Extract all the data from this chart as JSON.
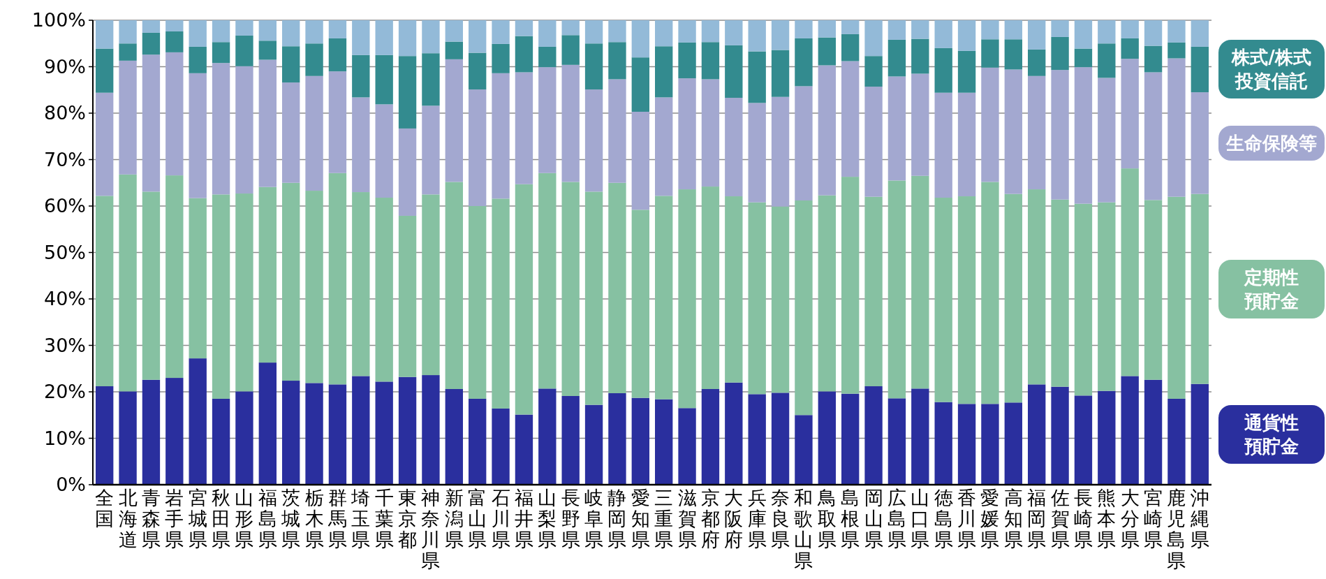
{
  "chart_data": {
    "type": "bar",
    "stacked": true,
    "grid": "y",
    "legend": "right",
    "categories": [
      "全国",
      "北海道",
      "青森県",
      "岩手県",
      "宮城県",
      "秋田県",
      "山形県",
      "福島県",
      "茨城県",
      "栃木県",
      "群馬県",
      "埼玉県",
      "千葉県",
      "東京都",
      "神奈川県",
      "新潟県",
      "富山県",
      "石川県",
      "福井県",
      "山梨県",
      "長野県",
      "岐阜県",
      "静岡県",
      "愛知県",
      "三重県",
      "滋賀県",
      "京都府",
      "大阪府",
      "兵庫県",
      "奈良県",
      "和歌山県",
      "鳥取県",
      "島根県",
      "岡山県",
      "広島県",
      "山口県",
      "徳島県",
      "香川県",
      "愛媛県",
      "高知県",
      "福岡県",
      "佐賀県",
      "長崎県",
      "熊本県",
      "大分県",
      "宮崎県",
      "鹿児島県",
      "沖縄県"
    ],
    "ylim": [
      0,
      100
    ],
    "yticks": [
      {
        "value": 0,
        "label": "0%"
      },
      {
        "value": 10,
        "label": "10%"
      },
      {
        "value": 20,
        "label": "20%"
      },
      {
        "value": 30,
        "label": "30%"
      },
      {
        "value": 40,
        "label": "40%"
      },
      {
        "value": 50,
        "label": "50%"
      },
      {
        "value": 60,
        "label": "60%"
      },
      {
        "value": 70,
        "label": "70%"
      },
      {
        "value": 80,
        "label": "80%"
      },
      {
        "value": 90,
        "label": "90%"
      },
      {
        "value": 100,
        "label": "100%"
      }
    ],
    "series": [
      {
        "name": "通貨性預貯金",
        "color": "#2a2f9e",
        "values": [
          21.2,
          20.1,
          22.6,
          23.0,
          27.2,
          18.5,
          20.1,
          26.3,
          22.4,
          21.9,
          21.6,
          23.4,
          22.2,
          23.2,
          23.6,
          20.6,
          18.5,
          16.4,
          15.1,
          20.7,
          19.1,
          17.2,
          19.7,
          18.7,
          18.4,
          16.5,
          20.6,
          22.0,
          19.5,
          19.8,
          15.0,
          20.1,
          19.6,
          21.2,
          18.6,
          20.7,
          17.8,
          17.4,
          17.4,
          17.7,
          21.6,
          21.1,
          19.2,
          20.2,
          23.4,
          22.6,
          18.5,
          21.7
        ]
      },
      {
        "name": "定期性預貯金",
        "color": "#86c1a2",
        "values": [
          41.0,
          46.7,
          40.5,
          43.6,
          34.5,
          44.0,
          42.6,
          37.8,
          42.6,
          41.4,
          45.5,
          39.6,
          39.6,
          34.7,
          38.9,
          44.6,
          41.5,
          45.2,
          49.6,
          46.4,
          46.1,
          45.9,
          45.3,
          40.5,
          43.8,
          47.1,
          43.6,
          40.1,
          41.3,
          40.1,
          46.2,
          42.2,
          46.7,
          40.8,
          46.9,
          45.8,
          44.0,
          44.7,
          47.8,
          44.9,
          42.0,
          40.3,
          41.3,
          40.6,
          44.7,
          38.7,
          43.5,
          40.9
        ]
      },
      {
        "name": "生命保険等",
        "color": "#a3a8d0",
        "values": [
          22.2,
          24.5,
          29.5,
          26.5,
          26.9,
          28.3,
          27.4,
          27.4,
          21.6,
          24.7,
          21.9,
          20.4,
          20.1,
          18.8,
          19.1,
          26.4,
          25.1,
          27.0,
          24.1,
          22.8,
          25.2,
          22.0,
          22.3,
          21.1,
          21.2,
          23.9,
          23.1,
          21.2,
          21.4,
          23.6,
          24.6,
          28.0,
          24.9,
          23.7,
          22.4,
          22.0,
          22.6,
          22.3,
          24.6,
          26.8,
          24.4,
          27.9,
          29.4,
          26.8,
          23.6,
          27.5,
          29.8,
          21.9
        ]
      },
      {
        "name": "株式/株式投資信託",
        "color": "#338b8f",
        "values": [
          9.5,
          3.7,
          4.7,
          4.5,
          5.7,
          4.5,
          6.6,
          4.1,
          7.8,
          7.0,
          7.1,
          9.1,
          10.6,
          15.6,
          11.3,
          3.8,
          7.9,
          6.3,
          7.8,
          4.4,
          6.4,
          9.9,
          8.0,
          11.7,
          11.0,
          7.7,
          8.0,
          11.3,
          11.1,
          10.1,
          10.3,
          6.0,
          5.8,
          6.6,
          7.9,
          7.5,
          9.6,
          9.0,
          6.1,
          6.5,
          5.7,
          7.1,
          4.0,
          7.4,
          4.4,
          5.7,
          3.4,
          9.8
        ]
      },
      {
        "color": "#93bad8",
        "values": [
          6.1,
          5.0,
          2.7,
          2.4,
          5.7,
          4.7,
          3.3,
          4.4,
          5.6,
          5.0,
          3.9,
          7.5,
          7.5,
          7.7,
          7.1,
          4.6,
          7.0,
          5.1,
          3.4,
          5.7,
          3.2,
          5.0,
          4.7,
          8.0,
          5.6,
          4.8,
          4.7,
          5.4,
          6.7,
          6.4,
          3.9,
          3.7,
          3.0,
          7.7,
          4.2,
          4.0,
          6.0,
          6.6,
          4.1,
          4.1,
          6.3,
          3.6,
          6.1,
          5.0,
          3.9,
          5.5,
          4.8,
          5.7
        ]
      }
    ]
  }
}
